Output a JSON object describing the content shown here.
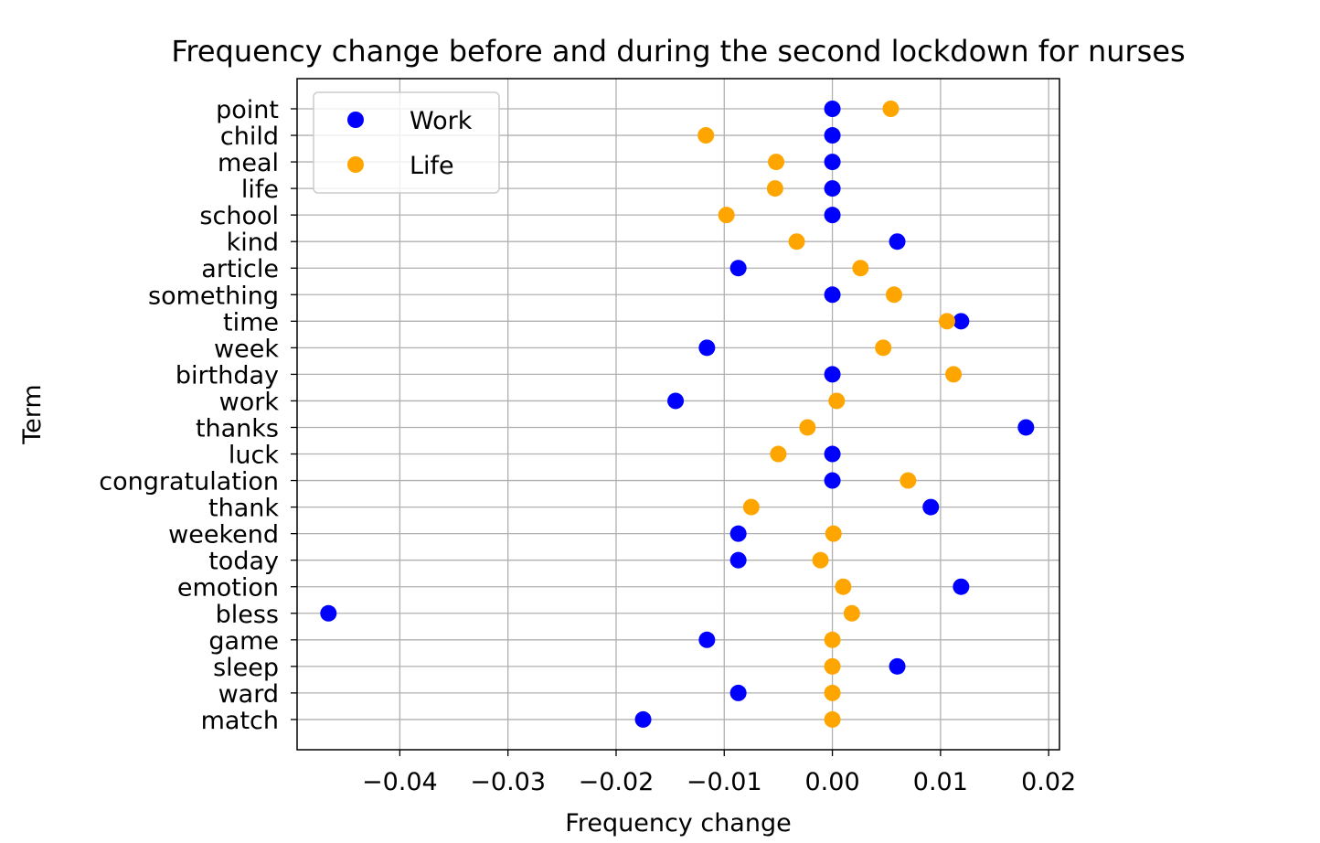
{
  "chart_data": {
    "type": "scatter",
    "title": "Frequency change before and during the second lockdown for nurses",
    "xlabel": "Frequency change",
    "ylabel": "Term",
    "xlim": [
      -0.0495,
      0.021
    ],
    "xticks": [
      -0.04,
      -0.03,
      -0.02,
      -0.01,
      0.0,
      0.01,
      0.02
    ],
    "xtick_labels": [
      "−0.04",
      "−0.03",
      "−0.02",
      "−0.01",
      "0.00",
      "0.01",
      "0.02"
    ],
    "categories": [
      "point",
      "child",
      "meal",
      "life",
      "school",
      "kind",
      "article",
      "something",
      "time",
      "week",
      "birthday",
      "work",
      "thanks",
      "luck",
      "congratulation",
      "thank",
      "weekend",
      "today",
      "emotion",
      "bless",
      "game",
      "sleep",
      "ward",
      "match"
    ],
    "grid": true,
    "legend_position": "upper-left",
    "series": [
      {
        "name": "Work",
        "color": "#0000ff",
        "values": [
          0.0,
          0.0,
          0.0,
          0.0,
          0.0,
          0.006,
          -0.0087,
          0.0,
          0.0119,
          -0.0116,
          0.0,
          -0.0145,
          0.0179,
          0.0,
          0.0,
          0.0091,
          -0.0087,
          -0.0087,
          0.0119,
          -0.0466,
          -0.0116,
          0.006,
          -0.0087,
          -0.0175
        ]
      },
      {
        "name": "Life",
        "color": "#ffa500",
        "values": [
          0.0054,
          -0.0117,
          -0.0052,
          -0.0053,
          -0.0098,
          -0.0033,
          0.0026,
          0.0057,
          0.0106,
          0.0047,
          0.0112,
          0.0004,
          -0.0023,
          -0.005,
          0.007,
          -0.0075,
          0.0001,
          -0.0011,
          0.001,
          0.0018,
          0.0,
          0.0,
          0.0,
          0.0
        ]
      }
    ]
  }
}
